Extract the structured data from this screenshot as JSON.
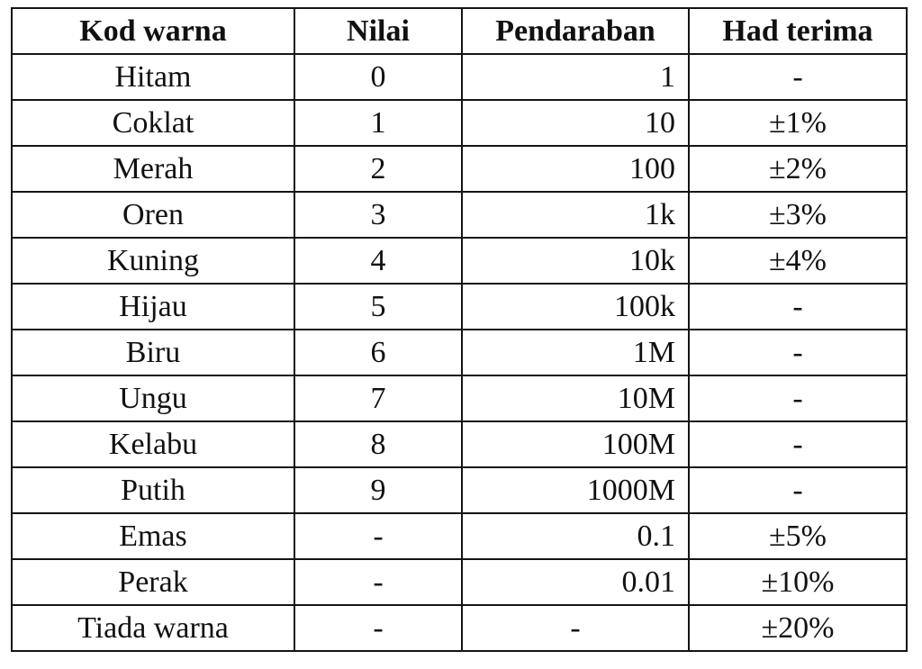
{
  "table": {
    "headers": [
      "Kod warna",
      "Nilai",
      "Pendaraban",
      "Had terima"
    ],
    "rows": [
      [
        "Hitam",
        "0",
        "1",
        "-"
      ],
      [
        "Coklat",
        "1",
        "10",
        "±1%"
      ],
      [
        "Merah",
        "2",
        "100",
        "±2%"
      ],
      [
        "Oren",
        "3",
        "1k",
        "±3%"
      ],
      [
        "Kuning",
        "4",
        "10k",
        "±4%"
      ],
      [
        "Hijau",
        "5",
        "100k",
        "-"
      ],
      [
        "Biru",
        "6",
        "1M",
        "-"
      ],
      [
        "Ungu",
        "7",
        "10M",
        "-"
      ],
      [
        "Kelabu",
        "8",
        "100M",
        "-"
      ],
      [
        "Putih",
        "9",
        "1000M",
        "-"
      ],
      [
        "Emas",
        "-",
        "0.1",
        "±5%"
      ],
      [
        "Perak",
        "-",
        "0.01",
        "±10%"
      ],
      [
        "Tiada warna",
        "-",
        "-",
        "±20%"
      ]
    ]
  }
}
